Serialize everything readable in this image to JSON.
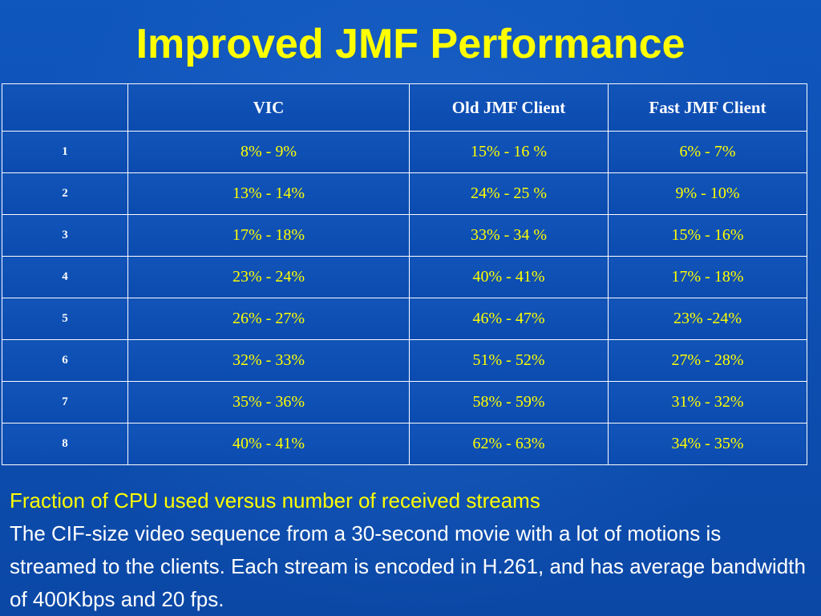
{
  "slide": {
    "title": "Improved JMF Performance"
  },
  "table": {
    "headers": [
      "",
      "VIC",
      "Old JMF Client",
      "Fast JMF Client"
    ],
    "rows": [
      {
        "label": "1",
        "vic": "8% - 9%",
        "old": "15% - 16 %",
        "fast": "6% - 7%"
      },
      {
        "label": "2",
        "vic": "13% - 14%",
        "old": "24% - 25 %",
        "fast": "9% - 10%"
      },
      {
        "label": "3",
        "vic": "17% - 18%",
        "old": "33% - 34 %",
        "fast": "15% - 16%"
      },
      {
        "label": "4",
        "vic": "23% - 24%",
        "old": "40% - 41%",
        "fast": "17% - 18%"
      },
      {
        "label": "5",
        "vic": "26% - 27%",
        "old": "46% - 47%",
        "fast": "23% -24%"
      },
      {
        "label": "6",
        "vic": "32% - 33%",
        "old": "51% - 52%",
        "fast": "27% - 28%"
      },
      {
        "label": "7",
        "vic": "35% - 36%",
        "old": "58% - 59%",
        "fast": "31% - 32%"
      },
      {
        "label": "8",
        "vic": "40% - 41%",
        "old": "62% - 63%",
        "fast": "34% - 35%"
      }
    ]
  },
  "caption": {
    "summary": "Fraction of CPU used versus number of received streams",
    "description": "The CIF-size video sequence from a 30-second movie with a lot of motions is streamed to the clients. Each stream is encoded in H.261, and has average bandwidth of 400Kbps and 20 fps."
  },
  "colors": {
    "background": "#0d4fb0",
    "title": "#ffff00",
    "cell_text": "#ffff00",
    "header_text": "#ffffff",
    "grid": "#ffffff"
  }
}
